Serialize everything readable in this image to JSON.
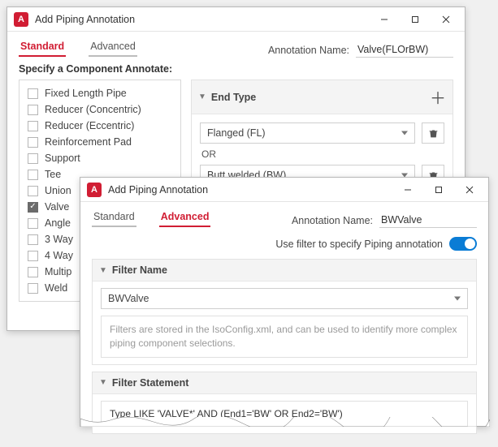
{
  "colors": {
    "accent": "#d11d33",
    "toggle": "#0a7cd5",
    "text": "#4a4a4a",
    "muted": "#9a9a9a",
    "border": "#cfcfcf",
    "panel": "#f4f4f4"
  },
  "window1": {
    "title": "Add Piping Annotation",
    "tabs": {
      "standard": "Standard",
      "advanced": "Advanced"
    },
    "active_tab": "standard",
    "annotation_name_label": "Annotation Name:",
    "annotation_name_value": "Valve(FLOrBW)",
    "specify_label": "Specify a Component Annotate:",
    "components": [
      {
        "label": "Fixed Length Pipe",
        "checked": false
      },
      {
        "label": "Reducer (Concentric)",
        "checked": false
      },
      {
        "label": "Reducer (Eccentric)",
        "checked": false
      },
      {
        "label": "Reinforcement Pad",
        "checked": false
      },
      {
        "label": "Support",
        "checked": false
      },
      {
        "label": "Tee",
        "checked": false
      },
      {
        "label": "Union",
        "checked": false
      },
      {
        "label": "Valve",
        "checked": true
      },
      {
        "label": "Angle",
        "checked": false
      },
      {
        "label": "3 Way",
        "checked": false
      },
      {
        "label": "4 Way",
        "checked": false
      },
      {
        "label": "Multip",
        "checked": false
      },
      {
        "label": "Weld",
        "checked": false
      }
    ],
    "end_type": {
      "header": "End Type",
      "option1": "Flanged (FL)",
      "or_label": "OR",
      "option2": "Butt welded (BW)"
    }
  },
  "window2": {
    "title": "Add Piping Annotation",
    "tabs": {
      "standard": "Standard",
      "advanced": "Advanced"
    },
    "active_tab": "advanced",
    "annotation_name_label": "Annotation Name:",
    "annotation_name_value": "BWValve",
    "filter_toggle_label": "Use filter to specify Piping annotation",
    "filter_toggle_on": true,
    "filter_name": {
      "header": "Filter Name",
      "value": "BWValve",
      "hint": "Filters are stored in the IsoConfig.xml, and can be used to identify more complex piping component selections."
    },
    "filter_statement": {
      "header": "Filter Statement",
      "value": "Type LIKE 'VALVE*' AND (End1='BW' OR End2='BW')"
    }
  }
}
